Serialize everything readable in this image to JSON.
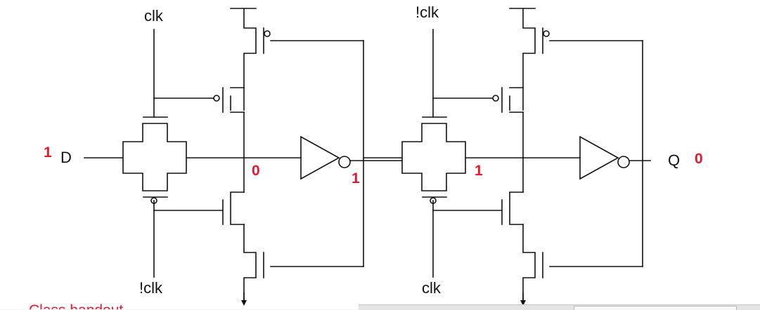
{
  "signals": {
    "clk_top_left": "clk",
    "nclk_top_right": "!clk",
    "nclk_bottom_left": "!clk",
    "clk_bottom_right": "clk",
    "input_label": "D",
    "output_label": "Q"
  },
  "logic_values": {
    "d_value": "1",
    "master_node": "0",
    "master_out": "1",
    "slave_node": "1",
    "q_value": "0"
  },
  "annotation": {
    "handout_text": "Class handout"
  }
}
